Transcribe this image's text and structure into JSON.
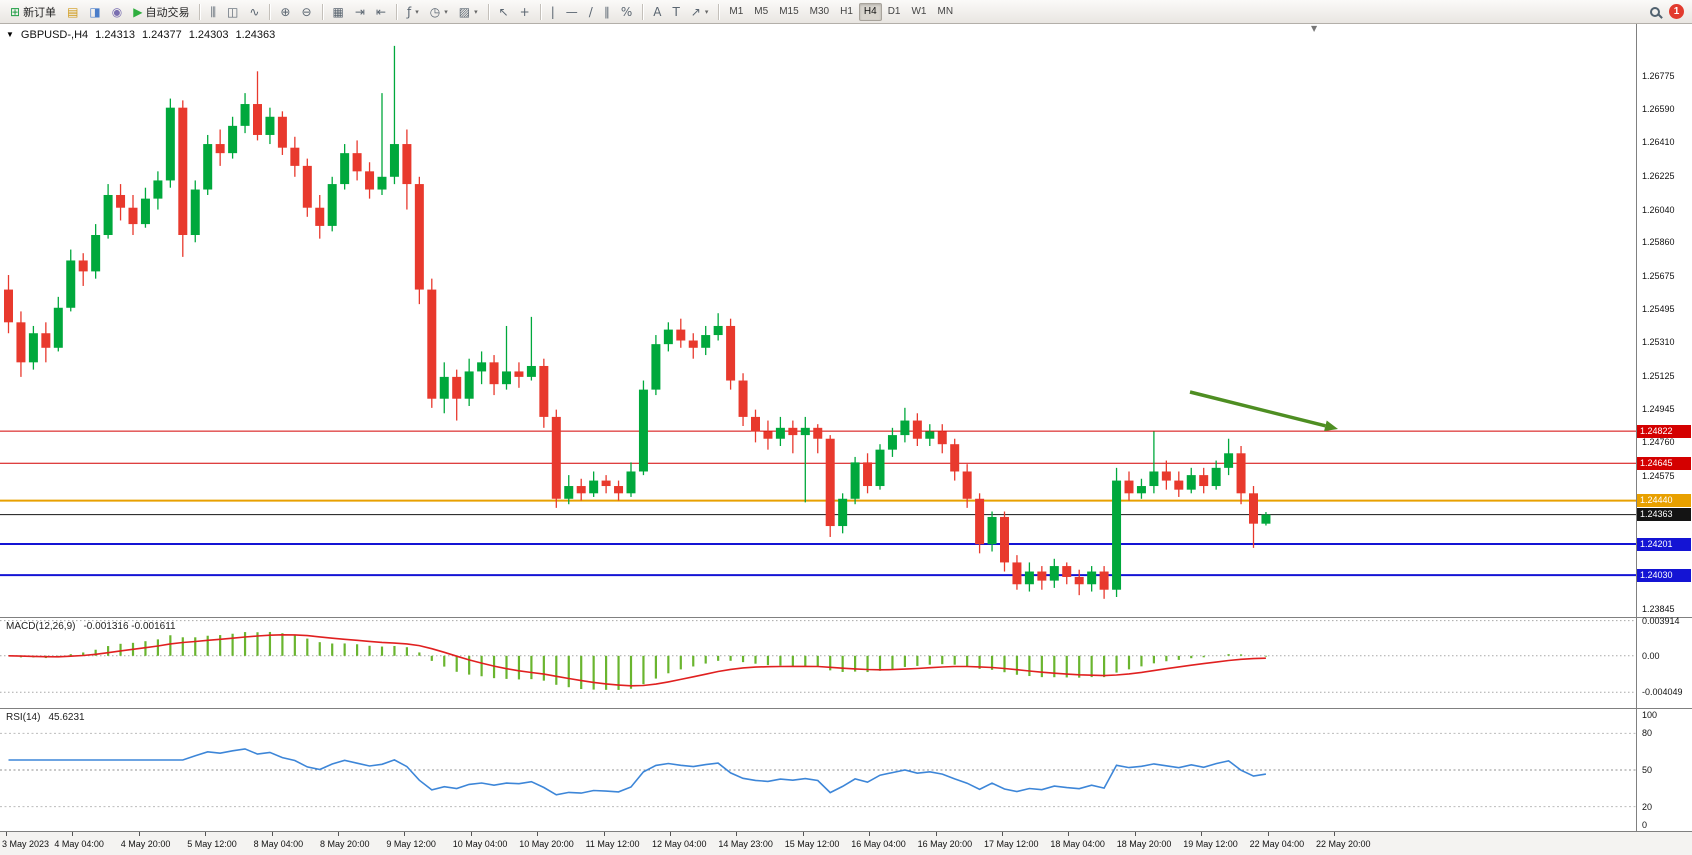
{
  "toolbar": {
    "caret_icon": "▾",
    "notification_count": "1",
    "groups": [
      {
        "items": [
          {
            "name": "new-order",
            "icon": "⊞",
            "icon_color": "#1d9e43",
            "label": "新订单"
          },
          {
            "name": "market-watch",
            "icon": "▤",
            "icon_color": "#d09a18"
          },
          {
            "name": "navigator",
            "icon": "◨",
            "icon_color": "#4a7dc9"
          },
          {
            "name": "terminal",
            "icon": "◉",
            "icon_color": "#7a6fb0"
          },
          {
            "name": "autotrading",
            "icon": "▶",
            "icon_color": "#2fae3e",
            "label": "自动交易"
          }
        ]
      },
      {
        "items": [
          {
            "name": "chart-bars",
            "icon": "⫼"
          },
          {
            "name": "chart-candles",
            "icon": "◫"
          },
          {
            "name": "chart-line",
            "icon": "∿"
          }
        ]
      },
      {
        "items": [
          {
            "name": "zoom-in",
            "icon": "⊕"
          },
          {
            "name": "zoom-out",
            "icon": "⊖"
          }
        ]
      },
      {
        "items": [
          {
            "name": "tile-windows",
            "icon": "▦"
          },
          {
            "name": "auto-scroll",
            "icon": "⇥"
          },
          {
            "name": "chart-shift",
            "icon": "⇤"
          }
        ]
      },
      {
        "items": [
          {
            "name": "indicators",
            "icon": "ƒ",
            "dropdown": true
          },
          {
            "name": "periods",
            "icon": "◷",
            "dropdown": true
          },
          {
            "name": "templates",
            "icon": "▨",
            "dropdown": true
          }
        ]
      },
      {
        "items": [
          {
            "name": "cursor",
            "icon": "↖"
          },
          {
            "name": "crosshair",
            "icon": "+"
          }
        ]
      },
      {
        "items": [
          {
            "name": "vertical-line",
            "icon": "|"
          },
          {
            "name": "horizontal-line",
            "icon": "—"
          },
          {
            "name": "trendline",
            "icon": "/"
          },
          {
            "name": "equidistant-channel",
            "icon": "∥"
          },
          {
            "name": "fibonacci",
            "icon": "%"
          }
        ]
      },
      {
        "items": [
          {
            "name": "text",
            "icon": "A"
          },
          {
            "name": "text-label",
            "icon": "T"
          },
          {
            "name": "arrows",
            "icon": "↗",
            "dropdown": true
          }
        ]
      }
    ],
    "timeframes": {
      "options": [
        "M1",
        "M5",
        "M15",
        "M30",
        "H1",
        "H4",
        "D1",
        "W1",
        "MN"
      ],
      "active": "H4"
    }
  },
  "chart": {
    "collapse_icon": "▼",
    "shift_marker_icon": "▼",
    "title": "GBPUSD-,H4",
    "open": "1.24313",
    "high": "1.24377",
    "low": "1.24303",
    "close": "1.24363"
  },
  "chart_data": {
    "type": "candlestick",
    "symbol": "GBPUSD-",
    "timeframe": "H4",
    "bull_color": "#00a83c",
    "bear_color": "#e8392d",
    "price_range": {
      "min": 1.238,
      "max": 1.2706
    },
    "y_ticks": [
      "1.26775",
      "1.26590",
      "1.26410",
      "1.26225",
      "1.26040",
      "1.25860",
      "1.25675",
      "1.25495",
      "1.25310",
      "1.25125",
      "1.24945",
      "1.24760",
      "1.24575",
      "1.23845"
    ],
    "time_labels": [
      "3 May 2023",
      "4 May 04:00",
      "4 May 20:00",
      "5 May 12:00",
      "8 May 04:00",
      "8 May 20:00",
      "9 May 12:00",
      "10 May 04:00",
      "10 May 20:00",
      "11 May 12:00",
      "12 May 04:00",
      "14 May 23:00",
      "15 May 12:00",
      "16 May 04:00",
      "16 May 20:00",
      "17 May 12:00",
      "18 May 04:00",
      "18 May 20:00",
      "19 May 12:00",
      "22 May 04:00",
      "22 May 20:00"
    ],
    "hlines": [
      {
        "price": 1.24822,
        "label": "1.24822",
        "color": "#d40000",
        "width": 1
      },
      {
        "price": 1.24645,
        "label": "1.24645",
        "color": "#d40000",
        "width": 1
      },
      {
        "price": 1.2444,
        "label": "1.24440",
        "color": "#e8a000",
        "width": 2
      },
      {
        "price": 1.24363,
        "label": "1.24363",
        "color": "#141414",
        "width": 1,
        "role": "current-price"
      },
      {
        "price": 1.24201,
        "label": "1.24201",
        "color": "#1414d4",
        "width": 2
      },
      {
        "price": 1.2403,
        "label": "1.24030",
        "color": "#1414d4",
        "width": 2
      }
    ],
    "annotations": [
      {
        "type": "arrow",
        "from": [
          1190,
          368
        ],
        "to": [
          1338,
          405
        ],
        "color": "#4e8e22"
      }
    ],
    "indicators": [
      {
        "name": "MACD",
        "title": "MACD(12,26,9)",
        "values_text": "-0.001316 -0.001611",
        "axis_labels": [
          0.003914,
          0,
          -0.004049
        ],
        "axis_texts": [
          "0.003914",
          "0.00",
          "-0.004049"
        ],
        "range": {
          "min": -0.0058,
          "max": 0.0042
        },
        "histogram_color": "#6ab52f",
        "signal_color": "#e02020"
      },
      {
        "name": "RSI",
        "title": "RSI(14)",
        "values_text": "45.6231",
        "axis_labels": [
          100,
          80,
          50,
          20,
          0
        ],
        "axis_texts": [
          "100",
          "80",
          "50",
          "20",
          "0"
        ],
        "levels": [
          80,
          50,
          20
        ],
        "line_color": "#3d86d8"
      }
    ],
    "ohlc": [
      [
        1.256,
        1.2568,
        1.2536,
        1.2542
      ],
      [
        1.2542,
        1.2548,
        1.2512,
        1.252
      ],
      [
        1.252,
        1.254,
        1.2516,
        1.2536
      ],
      [
        1.2536,
        1.2542,
        1.252,
        1.2528
      ],
      [
        1.2528,
        1.2556,
        1.2526,
        1.255
      ],
      [
        1.255,
        1.2582,
        1.2548,
        1.2576
      ],
      [
        1.2576,
        1.258,
        1.2562,
        1.257
      ],
      [
        1.257,
        1.2596,
        1.2566,
        1.259
      ],
      [
        1.259,
        1.2618,
        1.2588,
        1.2612
      ],
      [
        1.2612,
        1.2618,
        1.2598,
        1.2605
      ],
      [
        1.2605,
        1.2612,
        1.259,
        1.2596
      ],
      [
        1.2596,
        1.2616,
        1.2594,
        1.261
      ],
      [
        1.261,
        1.2625,
        1.2604,
        1.262
      ],
      [
        1.262,
        1.2665,
        1.2616,
        1.266
      ],
      [
        1.266,
        1.2664,
        1.2578,
        1.259
      ],
      [
        1.259,
        1.262,
        1.2586,
        1.2615
      ],
      [
        1.2615,
        1.2645,
        1.2612,
        1.264
      ],
      [
        1.264,
        1.2648,
        1.2628,
        1.2635
      ],
      [
        1.2635,
        1.2655,
        1.2632,
        1.265
      ],
      [
        1.265,
        1.2668,
        1.2646,
        1.2662
      ],
      [
        1.2662,
        1.268,
        1.2642,
        1.2645
      ],
      [
        1.2645,
        1.266,
        1.264,
        1.2655
      ],
      [
        1.2655,
        1.2658,
        1.2634,
        1.2638
      ],
      [
        1.2638,
        1.2644,
        1.2622,
        1.2628
      ],
      [
        1.2628,
        1.2632,
        1.26,
        1.2605
      ],
      [
        1.2605,
        1.2612,
        1.2588,
        1.2595
      ],
      [
        1.2595,
        1.2622,
        1.2592,
        1.2618
      ],
      [
        1.2618,
        1.264,
        1.2615,
        1.2635
      ],
      [
        1.2635,
        1.2642,
        1.262,
        1.2625
      ],
      [
        1.2625,
        1.263,
        1.261,
        1.2615
      ],
      [
        1.2615,
        1.2668,
        1.2612,
        1.2622
      ],
      [
        1.2622,
        1.2694,
        1.2618,
        1.264
      ],
      [
        1.264,
        1.2648,
        1.2604,
        1.2618
      ],
      [
        1.2618,
        1.2622,
        1.2552,
        1.256
      ],
      [
        1.256,
        1.2566,
        1.2495,
        1.25
      ],
      [
        1.25,
        1.252,
        1.2492,
        1.2512
      ],
      [
        1.2512,
        1.2516,
        1.2488,
        1.25
      ],
      [
        1.25,
        1.2522,
        1.2496,
        1.2515
      ],
      [
        1.2515,
        1.2526,
        1.2508,
        1.252
      ],
      [
        1.252,
        1.2524,
        1.2502,
        1.2508
      ],
      [
        1.2508,
        1.254,
        1.2505,
        1.2515
      ],
      [
        1.2515,
        1.252,
        1.2506,
        1.2512
      ],
      [
        1.2512,
        1.2545,
        1.251,
        1.2518
      ],
      [
        1.2518,
        1.2522,
        1.2484,
        1.249
      ],
      [
        1.249,
        1.2494,
        1.244,
        1.2445
      ],
      [
        1.2445,
        1.2458,
        1.2442,
        1.2452
      ],
      [
        1.2452,
        1.2456,
        1.2444,
        1.2448
      ],
      [
        1.2448,
        1.246,
        1.2446,
        1.2455
      ],
      [
        1.2455,
        1.2458,
        1.2448,
        1.2452
      ],
      [
        1.2452,
        1.2455,
        1.2444,
        1.2448
      ],
      [
        1.2448,
        1.2465,
        1.2446,
        1.246
      ],
      [
        1.246,
        1.251,
        1.2458,
        1.2505
      ],
      [
        1.2505,
        1.2535,
        1.2502,
        1.253
      ],
      [
        1.253,
        1.2542,
        1.2526,
        1.2538
      ],
      [
        1.2538,
        1.2544,
        1.2528,
        1.2532
      ],
      [
        1.2532,
        1.2536,
        1.2522,
        1.2528
      ],
      [
        1.2528,
        1.254,
        1.2524,
        1.2535
      ],
      [
        1.2535,
        1.2547,
        1.2532,
        1.254
      ],
      [
        1.254,
        1.2544,
        1.2505,
        1.251
      ],
      [
        1.251,
        1.2514,
        1.2485,
        1.249
      ],
      [
        1.249,
        1.2494,
        1.2476,
        1.2482
      ],
      [
        1.2482,
        1.2488,
        1.2472,
        1.2478
      ],
      [
        1.2478,
        1.249,
        1.2474,
        1.2484
      ],
      [
        1.2484,
        1.2488,
        1.247,
        1.248
      ],
      [
        1.248,
        1.249,
        1.2443,
        1.2484
      ],
      [
        1.2484,
        1.2486,
        1.247,
        1.2478
      ],
      [
        1.2478,
        1.248,
        1.2424,
        1.243
      ],
      [
        1.243,
        1.2448,
        1.2426,
        1.2445
      ],
      [
        1.2445,
        1.2468,
        1.2442,
        1.2465
      ],
      [
        1.2465,
        1.247,
        1.2448,
        1.2452
      ],
      [
        1.2452,
        1.2475,
        1.245,
        1.2472
      ],
      [
        1.2472,
        1.2484,
        1.2468,
        1.248
      ],
      [
        1.248,
        1.2495,
        1.2476,
        1.2488
      ],
      [
        1.2488,
        1.2492,
        1.2474,
        1.2478
      ],
      [
        1.2478,
        1.2486,
        1.2474,
        1.2482
      ],
      [
        1.2482,
        1.2486,
        1.247,
        1.2475
      ],
      [
        1.2475,
        1.2478,
        1.2455,
        1.246
      ],
      [
        1.246,
        1.2464,
        1.244,
        1.2445
      ],
      [
        1.2445,
        1.2448,
        1.2415,
        1.242
      ],
      [
        1.242,
        1.2438,
        1.2416,
        1.2435
      ],
      [
        1.2435,
        1.2438,
        1.2405,
        1.241
      ],
      [
        1.241,
        1.2414,
        1.2395,
        1.2398
      ],
      [
        1.2398,
        1.241,
        1.2394,
        1.2405
      ],
      [
        1.2405,
        1.2408,
        1.2395,
        1.24
      ],
      [
        1.24,
        1.2412,
        1.2396,
        1.2408
      ],
      [
        1.2408,
        1.241,
        1.2398,
        1.2402
      ],
      [
        1.2402,
        1.2406,
        1.2392,
        1.2398
      ],
      [
        1.2398,
        1.2408,
        1.2394,
        1.2405
      ],
      [
        1.2405,
        1.2408,
        1.239,
        1.2395
      ],
      [
        1.2395,
        1.2462,
        1.2391,
        1.2455
      ],
      [
        1.2455,
        1.246,
        1.2444,
        1.2448
      ],
      [
        1.2448,
        1.2456,
        1.2445,
        1.2452
      ],
      [
        1.2452,
        1.2482,
        1.2448,
        1.246
      ],
      [
        1.246,
        1.2466,
        1.245,
        1.2455
      ],
      [
        1.2455,
        1.246,
        1.2446,
        1.245
      ],
      [
        1.245,
        1.2462,
        1.2448,
        1.2458
      ],
      [
        1.2458,
        1.2462,
        1.2448,
        1.2452
      ],
      [
        1.2452,
        1.2466,
        1.245,
        1.2462
      ],
      [
        1.2462,
        1.2478,
        1.2458,
        1.247
      ],
      [
        1.247,
        1.2474,
        1.2442,
        1.2448
      ],
      [
        1.2448,
        1.2452,
        1.2418,
        1.24313
      ],
      [
        1.24313,
        1.24377,
        1.24303,
        1.24363
      ]
    ]
  }
}
